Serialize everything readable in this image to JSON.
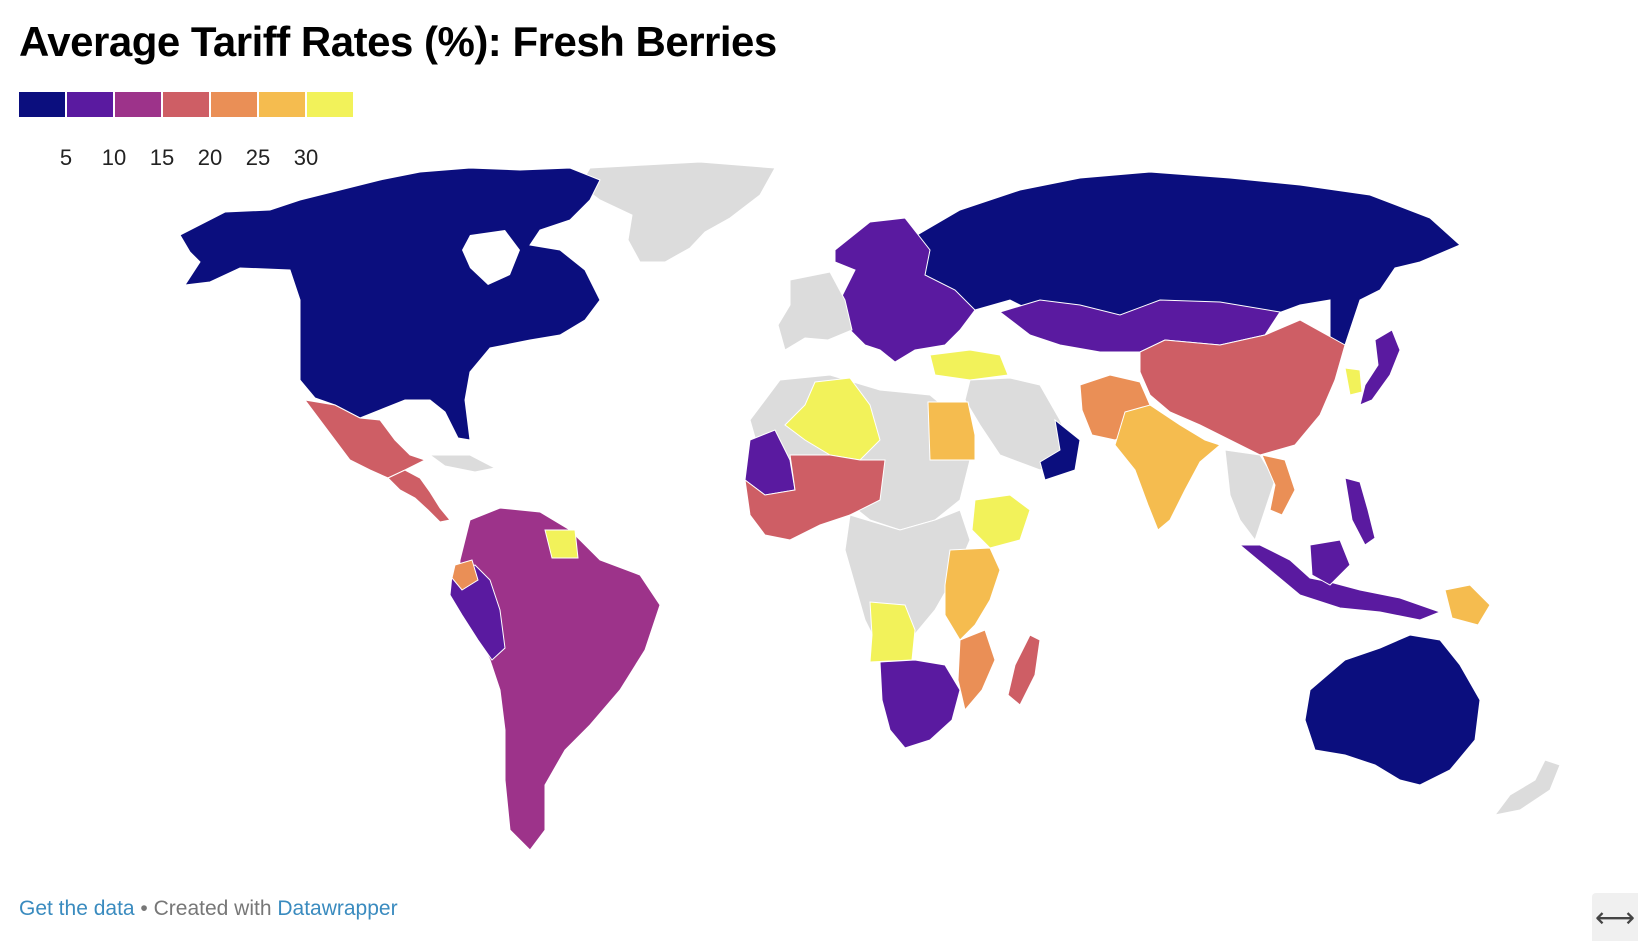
{
  "title": "Average Tariff Rates (%): Fresh Berries",
  "legend": {
    "colors": [
      "#0b0e7e",
      "#5a1aa0",
      "#9d338a",
      "#ce5e65",
      "#ea8f56",
      "#f5bc4f",
      "#f2f25a"
    ],
    "ticks": [
      "5",
      "10",
      "15",
      "20",
      "25",
      "30"
    ]
  },
  "map": {
    "no_data_color": "#dcdcdc",
    "regions": {
      "north_america": "#0b0e7e",
      "greenland": "#dcdcdc",
      "mexico": "#ce5e65",
      "central_america": "#ce5e65",
      "south_america": "#9d338a",
      "peru": "#5a1aa0",
      "ecuador": "#ea8f56",
      "guianas": "#f2f25a",
      "russia": "#0b0e7e",
      "europe": "#5a1aa0",
      "turkey": "#f2f25a",
      "kazakhstan_mongolia": "#5a1aa0",
      "china": "#ce5e65",
      "south_korea": "#f2f25a",
      "japan": "#5a1aa0",
      "india": "#f5bc4f",
      "pakistan_afghanistan": "#ea8f56",
      "algeria": "#f2f25a",
      "egypt": "#f5bc4f",
      "mauritania": "#5a1aa0",
      "west_africa": "#ce5e65",
      "ethiopia": "#f2f25a",
      "east_africa": "#f5bc4f",
      "angola": "#f2f25a",
      "mozambique": "#ea8f56",
      "southern_africa": "#5a1aa0",
      "madagascar": "#ce5e65",
      "oman": "#0b0e7e",
      "southeast_asia": "#5a1aa0",
      "vietnam": "#ea8f56",
      "papua_new_guinea": "#f5bc4f",
      "australia": "#0b0e7e",
      "new_zealand": "#dcdcdc"
    }
  },
  "footer": {
    "get_data": "Get the data",
    "separator": " • Created with ",
    "datawrapper": "Datawrapper"
  },
  "expand_icon": "⟷"
}
